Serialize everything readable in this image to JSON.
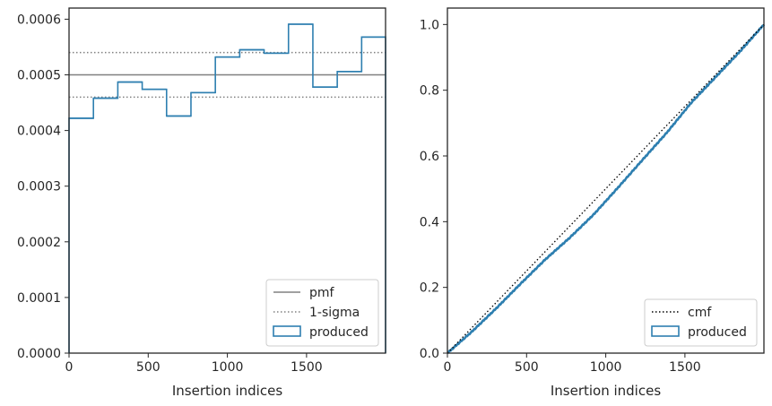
{
  "colors": {
    "produced": "#2e7fb0",
    "pmf": "#808080",
    "sigma": "#808080",
    "cmf": "#000000",
    "axes": "#262626"
  },
  "chart_data": [
    {
      "type": "step",
      "xlabel": "Insertion indices",
      "ylabel": "",
      "xlim": [
        0,
        1999
      ],
      "ylim": [
        0,
        0.00062
      ],
      "xticks": [
        0,
        500,
        1000,
        1500
      ],
      "yticks": [
        0,
        0.0001,
        0.0002,
        0.0003,
        0.0004,
        0.0005,
        0.0006
      ],
      "ytick_labels": [
        "0.0000",
        "0.0001",
        "0.0002",
        "0.0003",
        "0.0004",
        "0.0005",
        "0.0006"
      ],
      "legend_location": "lower right",
      "pmf": 0.0005,
      "sigma_band": [
        0.00046,
        0.00054
      ],
      "bin_edges": [
        0,
        154,
        308,
        462,
        616,
        770,
        924,
        1078,
        1232,
        1386,
        1540,
        1694,
        1848,
        1999
      ],
      "values": [
        0.000422,
        0.000458,
        0.000487,
        0.000474,
        0.000426,
        0.000468,
        0.000532,
        0.000545,
        0.000539,
        0.000591,
        0.000478,
        0.000506,
        0.000568
      ],
      "legend": [
        {
          "label": "pmf",
          "style": "solid"
        },
        {
          "label": "1-sigma",
          "style": "dotted"
        },
        {
          "label": "produced",
          "style": "patch"
        }
      ]
    },
    {
      "type": "line",
      "xlabel": "Insertion indices",
      "ylabel": "",
      "xlim": [
        0,
        1999
      ],
      "ylim": [
        0,
        1.05
      ],
      "xticks": [
        0,
        500,
        1000,
        1500
      ],
      "yticks": [
        0.0,
        0.2,
        0.4,
        0.6,
        0.8,
        1.0
      ],
      "ytick_labels": [
        "0.0",
        "0.2",
        "0.4",
        "0.6",
        "0.8",
        "1.0"
      ],
      "legend_location": "lower right",
      "cmf": {
        "x": [
          0,
          1999
        ],
        "y": [
          0,
          1.0
        ]
      },
      "produced": {
        "x": [
          0,
          154,
          308,
          462,
          616,
          770,
          924,
          1078,
          1232,
          1386,
          1540,
          1694,
          1848,
          1999
        ],
        "y": [
          0,
          0.065,
          0.136,
          0.211,
          0.284,
          0.35,
          0.422,
          0.504,
          0.588,
          0.671,
          0.762,
          0.84,
          0.918,
          1.0
        ]
      },
      "legend": [
        {
          "label": "cmf",
          "style": "dotted"
        },
        {
          "label": "produced",
          "style": "patch"
        }
      ]
    }
  ]
}
